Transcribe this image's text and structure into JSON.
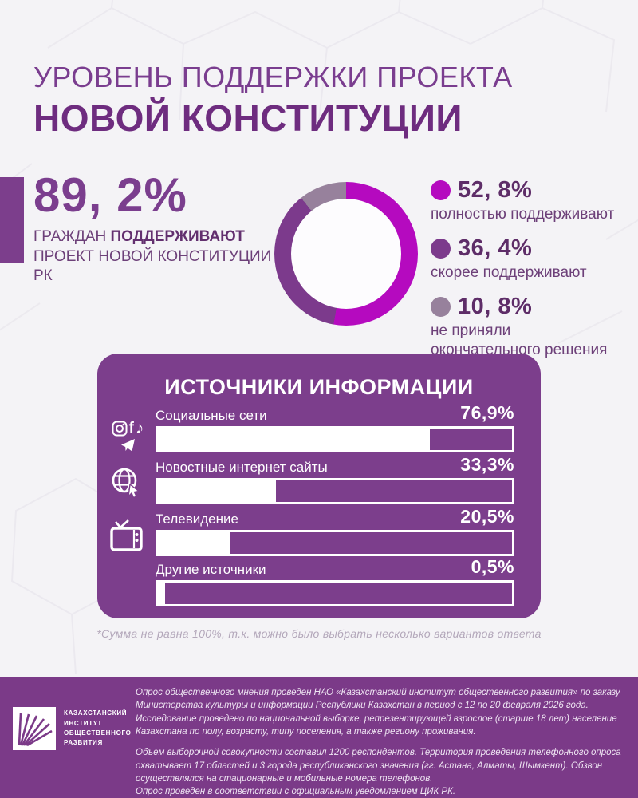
{
  "header": {
    "title_line1": "УРОВЕНЬ ПОДДЕРЖКИ ПРОЕКТА",
    "title_line2": "НОВОЙ КОНСТИТУЦИИ"
  },
  "headline": {
    "value": "89, 2%",
    "caption_prefix": "ГРАЖДАН",
    "caption_bold": "ПОДДЕРЖИВАЮТ",
    "caption_line2": "ПРОЕКТ НОВОЙ КОНСТИТУЦИИ РК"
  },
  "chart_data": [
    {
      "type": "pie",
      "subtype": "donut",
      "title": "",
      "labels": [
        "полностью поддерживают",
        "скорее поддерживают",
        "не приняли окончательного решения"
      ],
      "values": [
        52.8,
        36.4,
        10.8
      ],
      "display_values": [
        "52, 8%",
        "36, 4%",
        "10, 8%"
      ],
      "colors": [
        "#b50abf",
        "#7c3a8c",
        "#97819c"
      ],
      "legend_position": "right",
      "start_angle_deg": 0,
      "direction": "clockwise"
    },
    {
      "type": "bar",
      "orientation": "horizontal",
      "title": "ИСТОЧНИКИ ИНФОРМАЦИИ",
      "categories": [
        "Социальные сети",
        "Новостные интернет сайты",
        "Телевидение",
        "Другие источники"
      ],
      "values": [
        76.9,
        33.3,
        20.5,
        0.5
      ],
      "display_values": [
        "76,9%",
        "33,3%",
        "20,5%",
        "0,5%"
      ],
      "xlim": [
        0,
        100
      ],
      "bar_fill_color": "#ffffff",
      "track_color": "#7c3e8c",
      "icons": [
        "social-networks",
        "news-websites",
        "television",
        "none"
      ]
    }
  ],
  "sources_panel": {
    "footnote": "*Сумма не равна 100%, т.к. можно было выбрать несколько вариантов ответа"
  },
  "footer": {
    "logo_lines": [
      "КАЗАХСТАНСКИЙ",
      "ИНСТИТУТ",
      "ОБЩЕСТВЕННОГО",
      "РАЗВИТИЯ"
    ],
    "paragraph1": "Опрос общественного мнения проведен НАО «Казахстанский институт общественного развития» по заказу Министерства культуры и информации Республики Казахстан в период с 12 по 20 февраля 2026 года. Исследование проведено по национальной выборке, репрезентирующей взрослое (старше 18 лет) население Казахстана по полу, возрасту, типу поселения, а также региону проживания.",
    "paragraph2": "Объем выборочной совокупности составил 1200 респондентов. Территория проведения телефонного опроса охватывает 17 областей и 3 города республиканского значения (гг. Астана, Алматы, Шымкент). Обзвон осуществлялся на стационарные и мобильные номера телефонов.",
    "paragraph3": "Опрос проведен в соответствии с официальным уведомлением ЦИК РК."
  },
  "colors": {
    "background": "#f4f3f6",
    "accent_magenta": "#b50abf",
    "accent_purple": "#7c3e8c",
    "footer_purple": "#7b3a88",
    "title_purple": "#6e2c7f",
    "text_purple": "#6d4079"
  }
}
